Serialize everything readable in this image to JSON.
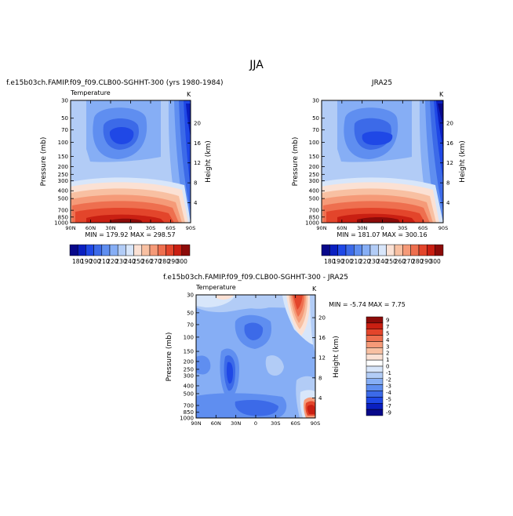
{
  "page": {
    "title": "JJA"
  },
  "palettes": {
    "abs": [
      "#08088a",
      "#0a1fc0",
      "#1f48e6",
      "#3c6ae8",
      "#5f8ef0",
      "#86aef5",
      "#b2ccf6",
      "#d8e6fa",
      "#fbe1d4",
      "#f8c0a2",
      "#f59a78",
      "#ee6f4f",
      "#e3452b",
      "#c91f12",
      "#8c0b09"
    ],
    "diff": [
      "#08088a",
      "#0a1fc0",
      "#1f48e6",
      "#3c6ae8",
      "#5f8ef0",
      "#86aef5",
      "#b2ccf6",
      "#d8e6fa",
      "#ffffff",
      "#fbe1d4",
      "#f8c0a2",
      "#f59a78",
      "#ee6f4f",
      "#e3452b",
      "#c91f12",
      "#8c0b09"
    ]
  },
  "axes": {
    "pressure_label": "Pressure (mb)",
    "height_label": "Height (km)",
    "pressure_ticks": [
      "30",
      "50",
      "70",
      "100",
      "150",
      "200",
      "250",
      "300",
      "400",
      "500",
      "700",
      "850",
      "1000"
    ],
    "height_ticks": [
      "20",
      "16",
      "12",
      "8",
      "4"
    ],
    "lat_ticks": [
      "90N",
      "60N",
      "30N",
      "0",
      "30S",
      "60S",
      "90S"
    ],
    "variable": "Temperature",
    "unit": "K"
  },
  "chart_data": [
    {
      "type": "heatmap",
      "title": "f.e15b03ch.FAMIP.f09_f09.CLB00-SGHHT-300 (yrs 1980-1984)",
      "variable": "Temperature",
      "unit": "K",
      "x_range": [
        "90N",
        "90S"
      ],
      "y_range_mb": [
        1000,
        30
      ],
      "min": 179.92,
      "max": 298.57,
      "stats_text": "MIN = 179.92   MAX = 298.57",
      "colorbar_labels": [
        "180",
        "190",
        "200",
        "210",
        "220",
        "230",
        "240",
        "250",
        "260",
        "270",
        "280",
        "290",
        "300"
      ]
    },
    {
      "type": "heatmap",
      "title": "JRA25",
      "variable": "Temperature",
      "unit": "K",
      "x_range": [
        "90N",
        "90S"
      ],
      "y_range_mb": [
        1000,
        30
      ],
      "min": 181.07,
      "max": 300.16,
      "stats_text": "MIN = 181.07   MAX = 300.16",
      "colorbar_labels": [
        "180",
        "190",
        "200",
        "210",
        "220",
        "230",
        "240",
        "250",
        "260",
        "270",
        "280",
        "290",
        "300"
      ]
    },
    {
      "type": "heatmap",
      "title": "f.e15b03ch.FAMIP.f09_f09.CLB00-SGHHT-300 - JRA25",
      "variable": "Temperature",
      "unit": "K",
      "x_range": [
        "90N",
        "90S"
      ],
      "y_range_mb": [
        1000,
        30
      ],
      "min": -5.74,
      "max": 7.75,
      "stats_text": "MIN = -5.74   MAX = 7.75",
      "colorbar_labels": [
        "9",
        "7",
        "5",
        "4",
        "3",
        "2",
        "1",
        "0",
        "-1",
        "-2",
        "-3",
        "-4",
        "-5",
        "-7",
        "-9"
      ]
    }
  ]
}
